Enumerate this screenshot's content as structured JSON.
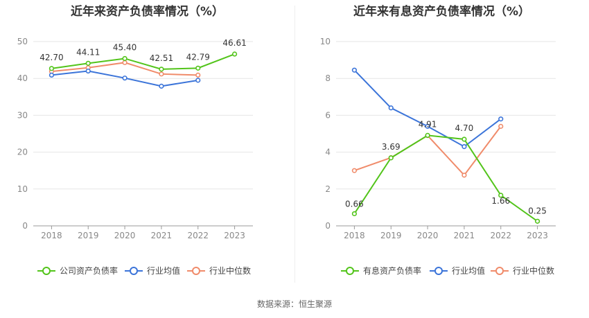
{
  "source_label": "数据来源：恒生聚源",
  "colors": {
    "company": "#52c41a",
    "avg": "#3b74d9",
    "median": "#f08b6a"
  },
  "chart_data": [
    {
      "type": "line",
      "title": "近年来资产负债率情况（%）",
      "x": [
        "2018",
        "2019",
        "2020",
        "2021",
        "2022",
        "2023"
      ],
      "ylim": [
        0,
        50
      ],
      "yticks": [
        "0",
        "10",
        "20",
        "30",
        "40",
        "50"
      ],
      "grid": true,
      "legend_position": "bottom",
      "series": [
        {
          "name": "公司资产负债率",
          "color": "#52c41a",
          "values": [
            42.7,
            44.11,
            45.4,
            42.51,
            42.79,
            46.61
          ],
          "labels": [
            "42.70",
            "44.11",
            "45.40",
            "42.51",
            "42.79",
            "46.61"
          ]
        },
        {
          "name": "行业均值",
          "color": "#3b74d9",
          "values": [
            40.9,
            42.0,
            40.1,
            37.9,
            39.5,
            null
          ]
        },
        {
          "name": "行业中位数",
          "color": "#f08b6a",
          "values": [
            41.9,
            42.9,
            44.3,
            41.2,
            40.9,
            null
          ]
        }
      ]
    },
    {
      "type": "line",
      "title": "近年来有息资产负债率情况（%）",
      "x": [
        "2018",
        "2019",
        "2020",
        "2021",
        "2022",
        "2023"
      ],
      "ylim": [
        0,
        10
      ],
      "yticks": [
        "0",
        "2",
        "4",
        "6",
        "8",
        "10"
      ],
      "grid": true,
      "legend_position": "bottom",
      "series": [
        {
          "name": "有息资产负债率",
          "color": "#52c41a",
          "values": [
            0.66,
            3.69,
            4.91,
            4.7,
            1.66,
            0.25
          ],
          "labels": [
            "0.66",
            "3.69",
            "4.91",
            "4.70",
            "1.66",
            "0.25"
          ]
        },
        {
          "name": "行业均值",
          "color": "#3b74d9",
          "values": [
            8.45,
            6.4,
            5.4,
            4.3,
            5.8,
            null
          ]
        },
        {
          "name": "行业中位数",
          "color": "#f08b6a",
          "values": [
            3.0,
            3.7,
            4.9,
            2.75,
            5.4,
            null
          ]
        }
      ]
    }
  ]
}
